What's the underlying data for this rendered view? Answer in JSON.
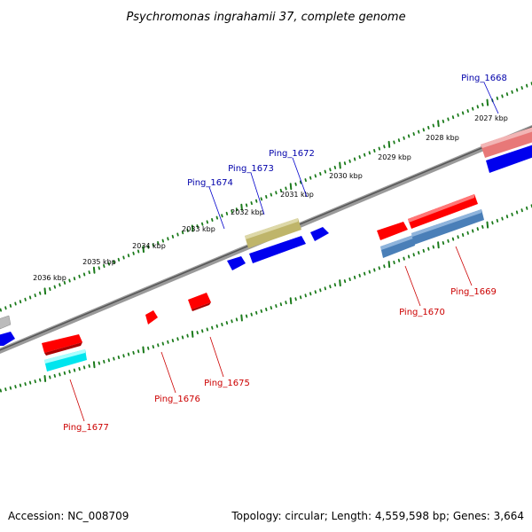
{
  "title": "Psychromonas ingrahamii 37, complete genome",
  "footer": {
    "accession": "Accession: NC_008709",
    "summary": "Topology: circular; Length: 4,559,598 bp; Genes: 3,664"
  },
  "colors": {
    "backbone": "#777777",
    "tick": "#1a7a1a",
    "forward_gene": "#ff0000",
    "reverse_gene": "#0000ff",
    "label_forward": "#cc0000",
    "label_reverse": "#0000aa"
  },
  "ruler_labels": [
    "2027 kbp",
    "2028 kbp",
    "2029 kbp",
    "2030 kbp",
    "2031 kbp",
    "2032 kbp",
    "2033 kbp",
    "2034 kbp",
    "2035 kbp",
    "2036 kbp"
  ],
  "gene_labels": {
    "ping_1668": "Ping_1668",
    "ping_1669": "Ping_1669",
    "ping_1670": "Ping_1670",
    "ping_1672": "Ping_1672",
    "ping_1673": "Ping_1673",
    "ping_1674": "Ping_1674",
    "ping_1675": "Ping_1675",
    "ping_1676": "Ping_1676",
    "ping_1677": "Ping_1677"
  }
}
